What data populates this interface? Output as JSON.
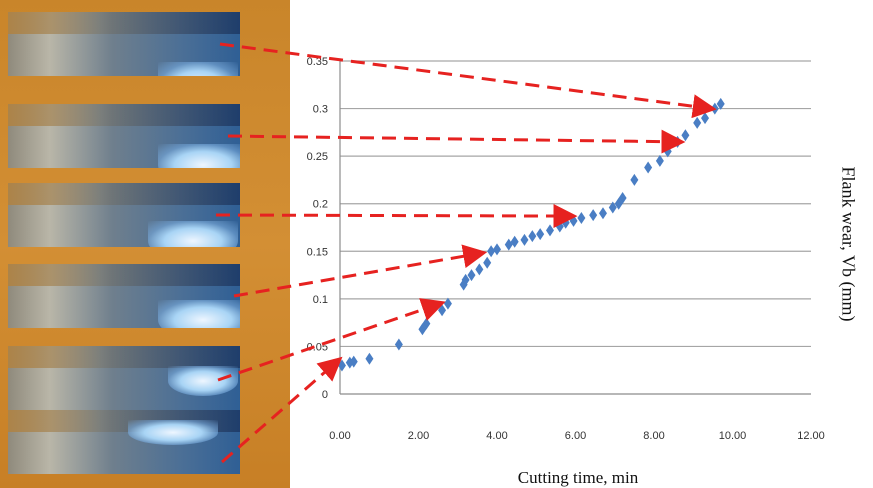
{
  "colors": {
    "marker": "#4a7ec4",
    "arrow": "#e62220",
    "grid": "#a6a6a6",
    "photo_background": "#cd8a2e"
  },
  "photo_panels": [
    "wear-photo",
    "wear-photo",
    "wear-photo",
    "wear-photo",
    "wear-photo",
    "wear-photo"
  ],
  "chart_data": {
    "type": "scatter",
    "title": "",
    "xlabel": "Cutting time, min",
    "ylabel": "Flank wear, Vb (mm)",
    "xlim": [
      0,
      12
    ],
    "ylim": [
      0,
      0.35
    ],
    "grid": true,
    "marker": "diamond",
    "x_ticks": [
      "0.00",
      "2.00",
      "4.00",
      "6.00",
      "8.00",
      "10.00",
      "12.00"
    ],
    "y_ticks": [
      "0",
      "0.05",
      "0.1",
      "0.15",
      "0.2",
      "0.25",
      "0.3",
      "0.35"
    ],
    "x_tick_values": [
      0,
      2,
      4,
      6,
      8,
      10,
      12
    ],
    "y_tick_values": [
      0,
      0.05,
      0.1,
      0.15,
      0.2,
      0.25,
      0.3,
      0.35
    ],
    "series": [
      {
        "values": [
          [
            0.05,
            0.03
          ],
          [
            0.25,
            0.033
          ],
          [
            0.35,
            0.034
          ],
          [
            0.75,
            0.037
          ],
          [
            1.5,
            0.052
          ],
          [
            2.1,
            0.068
          ],
          [
            2.2,
            0.074
          ],
          [
            2.6,
            0.088
          ],
          [
            2.75,
            0.095
          ],
          [
            3.15,
            0.115
          ],
          [
            3.2,
            0.12
          ],
          [
            3.35,
            0.125
          ],
          [
            3.55,
            0.131
          ],
          [
            3.75,
            0.138
          ],
          [
            3.85,
            0.15
          ],
          [
            4.0,
            0.152
          ],
          [
            4.3,
            0.157
          ],
          [
            4.45,
            0.16
          ],
          [
            4.7,
            0.162
          ],
          [
            4.9,
            0.166
          ],
          [
            5.1,
            0.168
          ],
          [
            5.35,
            0.172
          ],
          [
            5.6,
            0.176
          ],
          [
            5.75,
            0.18
          ],
          [
            5.95,
            0.182
          ],
          [
            6.15,
            0.185
          ],
          [
            6.45,
            0.188
          ],
          [
            6.7,
            0.19
          ],
          [
            6.95,
            0.196
          ],
          [
            7.1,
            0.2
          ],
          [
            7.2,
            0.206
          ],
          [
            7.5,
            0.225
          ],
          [
            7.85,
            0.238
          ],
          [
            8.15,
            0.245
          ],
          [
            8.35,
            0.255
          ],
          [
            8.6,
            0.265
          ],
          [
            8.8,
            0.272
          ],
          [
            9.1,
            0.285
          ],
          [
            9.3,
            0.29
          ],
          [
            9.55,
            0.3
          ],
          [
            9.7,
            0.305
          ]
        ]
      }
    ],
    "annotations": [
      {
        "type": "arrow",
        "from_photo": 1,
        "to": [
          9.55,
          0.3
        ]
      },
      {
        "type": "arrow",
        "from_photo": 2,
        "to": [
          8.75,
          0.265
        ]
      },
      {
        "type": "arrow",
        "from_photo": 3,
        "to": [
          6.0,
          0.187
        ]
      },
      {
        "type": "arrow",
        "from_photo": 4,
        "to": [
          3.7,
          0.148
        ]
      },
      {
        "type": "arrow",
        "from_photo": 5,
        "to": [
          2.65,
          0.095
        ]
      },
      {
        "type": "arrow",
        "from_photo": 6,
        "to": [
          0.05,
          0.035
        ]
      }
    ]
  }
}
